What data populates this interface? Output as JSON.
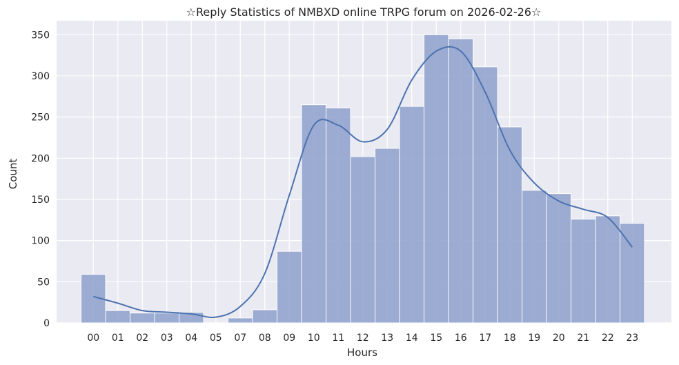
{
  "chart_data": {
    "type": "bar",
    "title": "☆Reply Statistics of NMBXD online TRPG forum on 2026-02-26☆",
    "xlabel": "Hours",
    "ylabel": "Count",
    "categories": [
      "00",
      "01",
      "02",
      "03",
      "04",
      "05",
      "07",
      "08",
      "09",
      "10",
      "11",
      "12",
      "13",
      "14",
      "15",
      "16",
      "17",
      "18",
      "19",
      "20",
      "21",
      "22",
      "23"
    ],
    "values": [
      59,
      15,
      12,
      12,
      13,
      0,
      6,
      16,
      87,
      265,
      261,
      202,
      212,
      263,
      350,
      345,
      311,
      238,
      161,
      157,
      126,
      130,
      121
    ],
    "kde": [
      32,
      24,
      15,
      13,
      11,
      7,
      20,
      60,
      155,
      240,
      240,
      220,
      235,
      295,
      330,
      330,
      280,
      210,
      170,
      148,
      138,
      128,
      92
    ],
    "ylim": [
      0,
      367
    ],
    "yticks": [
      0,
      50,
      100,
      150,
      200,
      250,
      300,
      350
    ],
    "grid": true,
    "colors": {
      "bar": "#8da0cb",
      "kde": "#4c72b0",
      "plot_bg": "#eaeaf2",
      "grid": "#ffffff"
    }
  }
}
